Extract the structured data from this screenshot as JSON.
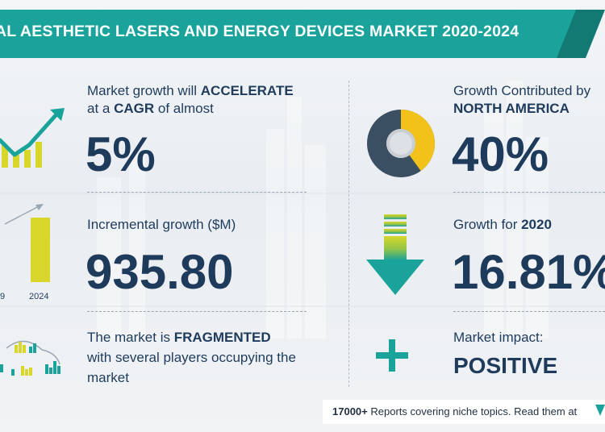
{
  "title": "AL AESTHETIC LASERS AND ENERGY DEVICES MARKET 2020-2024",
  "growth": {
    "line1_text": "Market growth will ",
    "line1_emph": "ACCELERATE",
    "line2_text1": "at a ",
    "line2_emph": "CAGR",
    "line2_text2": " of almost",
    "value": "5%"
  },
  "incremental": {
    "label": "Incremental growth ($M)",
    "value": "935.80",
    "bar_labels": [
      "9",
      "2024"
    ]
  },
  "market": {
    "line1_text": "The market is ",
    "line1_emph": "FRAGMENTED",
    "line2": "with several players occupying the",
    "line3": "market"
  },
  "region": {
    "line1": "Growth Contributed by",
    "line2": "NORTH AMERICA",
    "value": "40%",
    "share": 0.4
  },
  "year_growth": {
    "label_text": "Growth for ",
    "label_emph": "2020",
    "value": "16.81%"
  },
  "impact": {
    "label": "Market impact:",
    "value": "POSITIVE"
  },
  "footer": {
    "count": "17000+",
    "text": "Reports covering niche topics. Read them at"
  },
  "colors": {
    "teal": "#1aa39a",
    "navy": "#1f3b5c",
    "yellow": "#d8d62a",
    "donut_dark": "#3a4f62",
    "donut_yellow": "#f2c21b"
  }
}
